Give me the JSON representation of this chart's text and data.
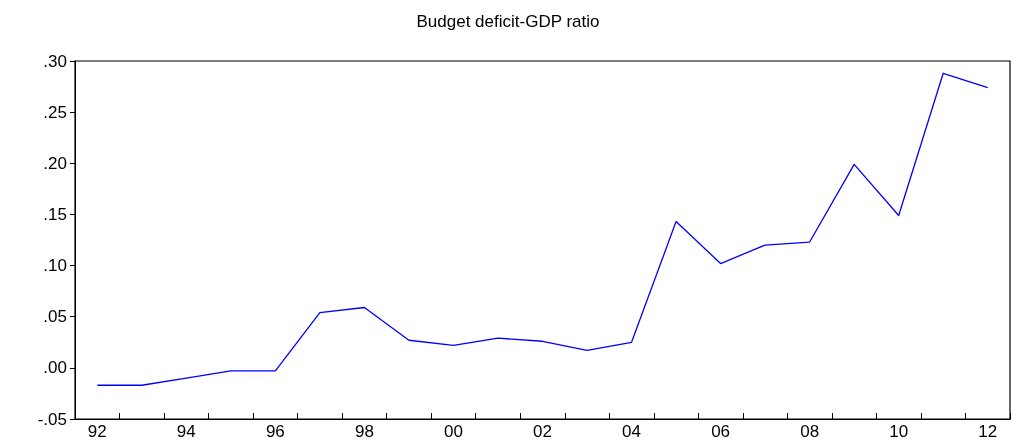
{
  "chart_data": {
    "type": "line",
    "title": "Budget deficit-GDP ratio",
    "categories": [
      "92",
      null,
      "94",
      null,
      "96",
      null,
      "98",
      null,
      "00",
      null,
      "02",
      null,
      "04",
      null,
      "06",
      null,
      "08",
      null,
      "10",
      null,
      "12"
    ],
    "series": [
      {
        "color": "#0000ff",
        "values": [
          -0.017,
          -0.017,
          -0.01,
          -0.003,
          -0.003,
          0.054,
          0.059,
          0.027,
          0.022,
          0.029,
          0.026,
          0.017,
          0.025,
          0.143,
          0.102,
          0.12,
          0.123,
          0.199,
          0.149,
          0.288,
          0.274
        ]
      }
    ],
    "ylim": [
      -0.05,
      0.3
    ],
    "yticks": [
      {
        "value": -0.05,
        "label": "-.05"
      },
      {
        "value": 0,
        "label": ".00"
      },
      {
        "value": 0.05,
        "label": ".05"
      },
      {
        "value": 0.1,
        "label": ".10"
      },
      {
        "value": 0.15,
        "label": ".15"
      },
      {
        "value": 0.2,
        "label": ".20"
      },
      {
        "value": 0.25,
        "label": ".25"
      },
      {
        "value": 0.3,
        "label": ".30"
      }
    ],
    "grid": false,
    "marker": "none",
    "line_style": "solid"
  }
}
